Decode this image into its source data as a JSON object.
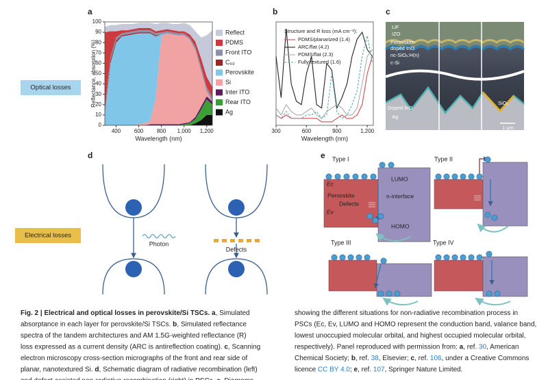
{
  "side_labels": [
    "Optical losses",
    "Electrical losses"
  ],
  "panel_labels": [
    "a",
    "b",
    "c",
    "d",
    "e"
  ],
  "chart_data": [
    {
      "type": "area",
      "stacked": true,
      "xlabel": "Wavelength (nm)",
      "ylabel": "Reflectance, absorption (%)",
      "x": [
        300,
        350,
        400,
        450,
        500,
        550,
        600,
        650,
        700,
        750,
        800,
        850,
        900,
        950,
        1000,
        1050,
        1100,
        1150,
        1200,
        1250
      ],
      "xlim": [
        300,
        1250
      ],
      "xticks": [
        400,
        600,
        800,
        {
          "value": 1000,
          "label": "1,000"
        },
        {
          "value": 1200,
          "label": "1,200"
        }
      ],
      "ylim": [
        0,
        100
      ],
      "yticks": [
        0,
        10,
        20,
        30,
        40,
        50,
        60,
        70,
        80,
        90,
        100
      ],
      "legend": "right",
      "series": [
        {
          "name": "Reflect",
          "color": "#c6c9da",
          "values": [
            5,
            6,
            6,
            6,
            6,
            5,
            5,
            5,
            5,
            7,
            7,
            6,
            6,
            7,
            8,
            9,
            10,
            20,
            40,
            55
          ]
        },
        {
          "name": "PDMS",
          "color": "#cc3a3e",
          "values": [
            75,
            25,
            6,
            3,
            2,
            2,
            2,
            2,
            2,
            2,
            2,
            2,
            2,
            2,
            2,
            3,
            5,
            8,
            10,
            10
          ]
        },
        {
          "name": "Front ITO",
          "color": "#8c90aa",
          "values": [
            3,
            3,
            3,
            2,
            2,
            2,
            2,
            2,
            2,
            2,
            2,
            2,
            2,
            2,
            2,
            2,
            3,
            4,
            4,
            4
          ]
        },
        {
          "name": "C₆₀",
          "color": "#9e2329",
          "values": [
            2,
            3,
            2,
            1,
            1,
            1,
            1,
            1,
            1,
            1,
            0,
            0,
            0,
            0,
            0,
            0,
            0,
            0,
            0,
            0
          ]
        },
        {
          "name": "Perovskite",
          "color": "#7fc6e8",
          "values": [
            10,
            60,
            80,
            86,
            87,
            88,
            88,
            87,
            85,
            60,
            2,
            0,
            0,
            0,
            0,
            0,
            0,
            0,
            0,
            0
          ]
        },
        {
          "name": "Si",
          "color": "#f1a3a3",
          "values": [
            0,
            0,
            0,
            0,
            0,
            0,
            1,
            2,
            3,
            25,
            85,
            88,
            87,
            86,
            85,
            80,
            65,
            35,
            5,
            0
          ]
        },
        {
          "name": "Inter ITO",
          "color": "#5b1d60",
          "values": [
            0,
            0,
            0,
            0,
            0,
            0,
            0,
            0,
            1,
            1,
            1,
            1,
            1,
            1,
            1,
            1,
            2,
            3,
            3,
            3
          ]
        },
        {
          "name": "Rear ITO",
          "color": "#3aa035",
          "values": [
            0,
            0,
            0,
            0,
            0,
            0,
            0,
            0,
            0,
            0,
            0,
            0,
            0,
            0,
            1,
            2,
            4,
            10,
            15,
            10
          ]
        },
        {
          "name": "Ag",
          "color": "#111111",
          "values": [
            0,
            0,
            0,
            0,
            0,
            0,
            0,
            0,
            0,
            0,
            0,
            0,
            0,
            0,
            0,
            0,
            2,
            5,
            10,
            10
          ]
        }
      ]
    },
    {
      "type": "line",
      "xlabel": "Wavelength (nm)",
      "legend_title": "Structure and R loss (mA cm⁻²):",
      "x": [
        300,
        350,
        400,
        450,
        500,
        550,
        600,
        650,
        700,
        750,
        800,
        850,
        900,
        950,
        1000,
        1050,
        1100,
        1150,
        1200,
        1250
      ],
      "xlim": [
        300,
        1260
      ],
      "xticks": [
        300,
        600,
        900,
        {
          "value": 1200,
          "label": "1,200"
        }
      ],
      "ylim": [
        0,
        30
      ],
      "series": [
        {
          "name": "PDMS/planarized (1.4)",
          "color": "#d84a4a",
          "values": [
            3,
            2,
            3,
            2,
            2,
            2,
            2,
            2,
            2,
            1,
            1,
            1,
            2,
            3,
            2,
            2,
            3,
            6,
            15,
            20
          ]
        },
        {
          "name": "ARC/flat (4.2)",
          "color": "#222222",
          "values": [
            20,
            8,
            28,
            12,
            7,
            6,
            15,
            20,
            6,
            5,
            18,
            16,
            5,
            8,
            12,
            20,
            25,
            27,
            22,
            20
          ]
        },
        {
          "name": "PDMS/flat (2.3)",
          "color": "#aaaaaa",
          "values": [
            5,
            3,
            6,
            4,
            3,
            3,
            4,
            5,
            3,
            2,
            4,
            5,
            6,
            5,
            3,
            3,
            5,
            12,
            20,
            22
          ]
        },
        {
          "name": "Fully textured (1.6)",
          "color": "#5aa6b0",
          "dashed": true,
          "values": [
            3,
            2,
            4,
            2,
            2,
            2,
            3,
            3,
            4,
            2,
            3,
            15,
            4,
            2,
            3,
            6,
            10,
            20,
            26,
            18
          ]
        }
      ]
    }
  ],
  "panel_c": {
    "labels": [
      "LiF",
      "IZO",
      "Perovskite-",
      "doped InO",
      "nc-SiOₓ:H(n)",
      "c-Si",
      "Doped InO",
      "Ag",
      "SiO₂",
      "1 µm"
    ]
  },
  "panel_d": {
    "labels": [
      "Photon",
      "Defects"
    ]
  },
  "panel_e": {
    "types": [
      "Type I",
      "Type II",
      "Type III",
      "Type IV"
    ],
    "labels": [
      "LUMO",
      "n-interface",
      "HOMO",
      "Perovskite",
      "Defects",
      "Ec",
      "Ev"
    ]
  },
  "caption": {
    "left": [
      [
        {
          "text": "Fig. 2 | Electrical and optical losses in perovskite/Si TSCs.",
          "bold": true
        },
        " ",
        {
          "text": "a",
          "bold": true
        },
        ", Simulated"
      ],
      [
        "absorptance in each layer for perovskite/Si TSCs. ",
        {
          "text": "b",
          "bold": true
        },
        ", Simulated reflectance"
      ],
      [
        "spectra of the tandem architectures and AM 1.5G-weighted reflectance (R)"
      ],
      [
        "loss expressed as a current density (ARC is antireflection coating). ",
        {
          "text": "c",
          "bold": true
        },
        ", Scanning"
      ],
      [
        "electron microscopy cross-section micrographs of the front and rear side of"
      ],
      [
        "planar, nanotextured Si. ",
        {
          "text": "d",
          "bold": true
        },
        ", Schematic diagram of radiative recombination (left)"
      ],
      [
        "and defect-assisted non-radiative recombination (right) in PSCs. ",
        {
          "text": "e",
          "bold": true
        },
        ", Diagrams"
      ]
    ],
    "right": [
      [
        "showing the different situations for non-radiative recombination process in"
      ],
      [
        "PSCs (Ec, Ev, LUMO and HOMO represent the conduction band, valance band,"
      ],
      [
        "lowest unoccupied molecular orbital, and highest occupied molecular orbital,"
      ],
      [
        "respectively). Panel reproduced with permission from: ",
        {
          "text": "a",
          "bold": true
        },
        ", ref. ",
        {
          "text": "30",
          "link": true
        },
        ", American"
      ],
      [
        "Chemical Society; ",
        {
          "text": "b",
          "bold": true
        },
        ", ref. ",
        {
          "text": "38",
          "link": true
        },
        ", Elsevier; ",
        {
          "text": "c",
          "bold": true
        },
        ", ref. ",
        {
          "text": "106",
          "link": true
        },
        ", under a Creative Commons"
      ],
      [
        "licence ",
        {
          "text": "CC BY 4.0",
          "link": true
        },
        "; ",
        {
          "text": "e",
          "bold": true
        },
        ", ref. ",
        {
          "text": "107",
          "link": true
        },
        ", Springer Nature Limited."
      ]
    ]
  }
}
